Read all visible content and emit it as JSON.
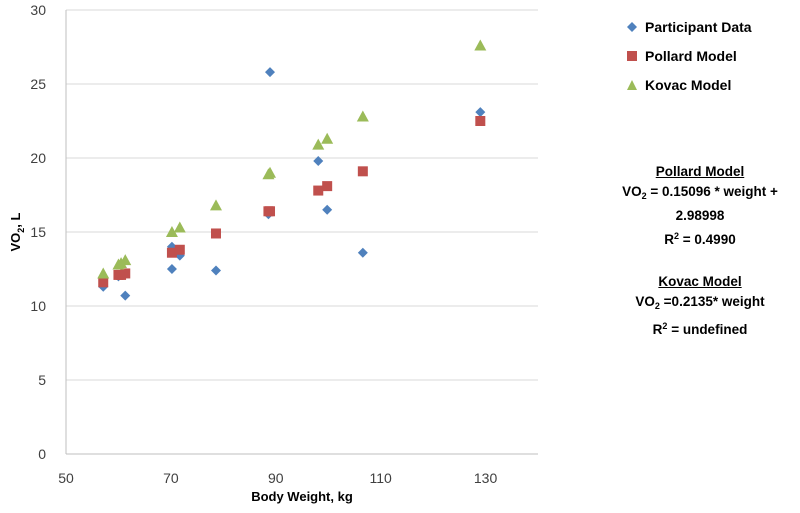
{
  "chart_data": {
    "type": "scatter",
    "title": "",
    "xlabel": "Body Weight, kg",
    "ylabel_main": "VO",
    "ylabel_sub": "2",
    "ylabel_tail": ", L",
    "xlim": [
      50,
      140
    ],
    "ylim": [
      0,
      30
    ],
    "xticks": [
      50,
      70,
      90,
      110,
      130
    ],
    "yticks": [
      0,
      5,
      10,
      15,
      20,
      25,
      30
    ],
    "grid": "horizontal",
    "legend_position": "right",
    "series": [
      {
        "name": "Participant Data",
        "marker": "diamond",
        "color": "#4F81BD",
        "points": [
          [
            57.1,
            11.3
          ],
          [
            60.0,
            12.0
          ],
          [
            60.5,
            12.1
          ],
          [
            61.3,
            10.7
          ],
          [
            70.2,
            14.0
          ],
          [
            70.2,
            12.5
          ],
          [
            71.7,
            13.4
          ],
          [
            78.6,
            12.4
          ],
          [
            88.6,
            16.2
          ],
          [
            88.9,
            25.8
          ],
          [
            98.1,
            19.8
          ],
          [
            99.8,
            16.5
          ],
          [
            106.6,
            13.6
          ],
          [
            129.0,
            23.1
          ]
        ]
      },
      {
        "name": "Pollard Model",
        "marker": "square",
        "color": "#C0504D",
        "points": [
          [
            57.1,
            11.6
          ],
          [
            60.0,
            12.1
          ],
          [
            60.5,
            12.1
          ],
          [
            61.3,
            12.2
          ],
          [
            70.2,
            13.6
          ],
          [
            71.7,
            13.8
          ],
          [
            78.6,
            14.9
          ],
          [
            88.6,
            16.4
          ],
          [
            88.9,
            16.4
          ],
          [
            98.1,
            17.8
          ],
          [
            99.8,
            18.1
          ],
          [
            106.6,
            19.1
          ],
          [
            129.0,
            22.5
          ]
        ]
      },
      {
        "name": "Kovac Model",
        "marker": "triangle",
        "color": "#9BBB59",
        "points": [
          [
            57.1,
            12.2
          ],
          [
            60.0,
            12.8
          ],
          [
            60.5,
            12.9
          ],
          [
            61.3,
            13.1
          ],
          [
            70.2,
            15.0
          ],
          [
            71.7,
            15.3
          ],
          [
            78.6,
            16.8
          ],
          [
            88.6,
            18.9
          ],
          [
            88.9,
            19.0
          ],
          [
            98.1,
            20.9
          ],
          [
            99.8,
            21.3
          ],
          [
            106.6,
            22.8
          ],
          [
            129.0,
            27.6
          ]
        ]
      }
    ]
  },
  "legend": [
    {
      "label": "Participant Data",
      "marker": "diamond",
      "color": "#4F81BD"
    },
    {
      "label": "Pollard Model",
      "marker": "square",
      "color": "#C0504D"
    },
    {
      "label": "Kovac Model",
      "marker": "triangle",
      "color": "#9BBB59"
    }
  ],
  "annotations": {
    "pollard": {
      "heading": "Pollard Model",
      "eq_prefix": "VO",
      "eq_sub": "2",
      "eq_rest": " = 0.15096 * weight + 2.98998",
      "r2_prefix": "R",
      "r2_sup": "2",
      "r2_rest": " = 0.4990"
    },
    "kovac": {
      "heading": "Kovac Model",
      "eq_prefix": "VO",
      "eq_sub": "2",
      "eq_rest": " =0.2135* weight",
      "r2_prefix": "R",
      "r2_sup": "2",
      "r2_rest": " = undefined"
    }
  }
}
